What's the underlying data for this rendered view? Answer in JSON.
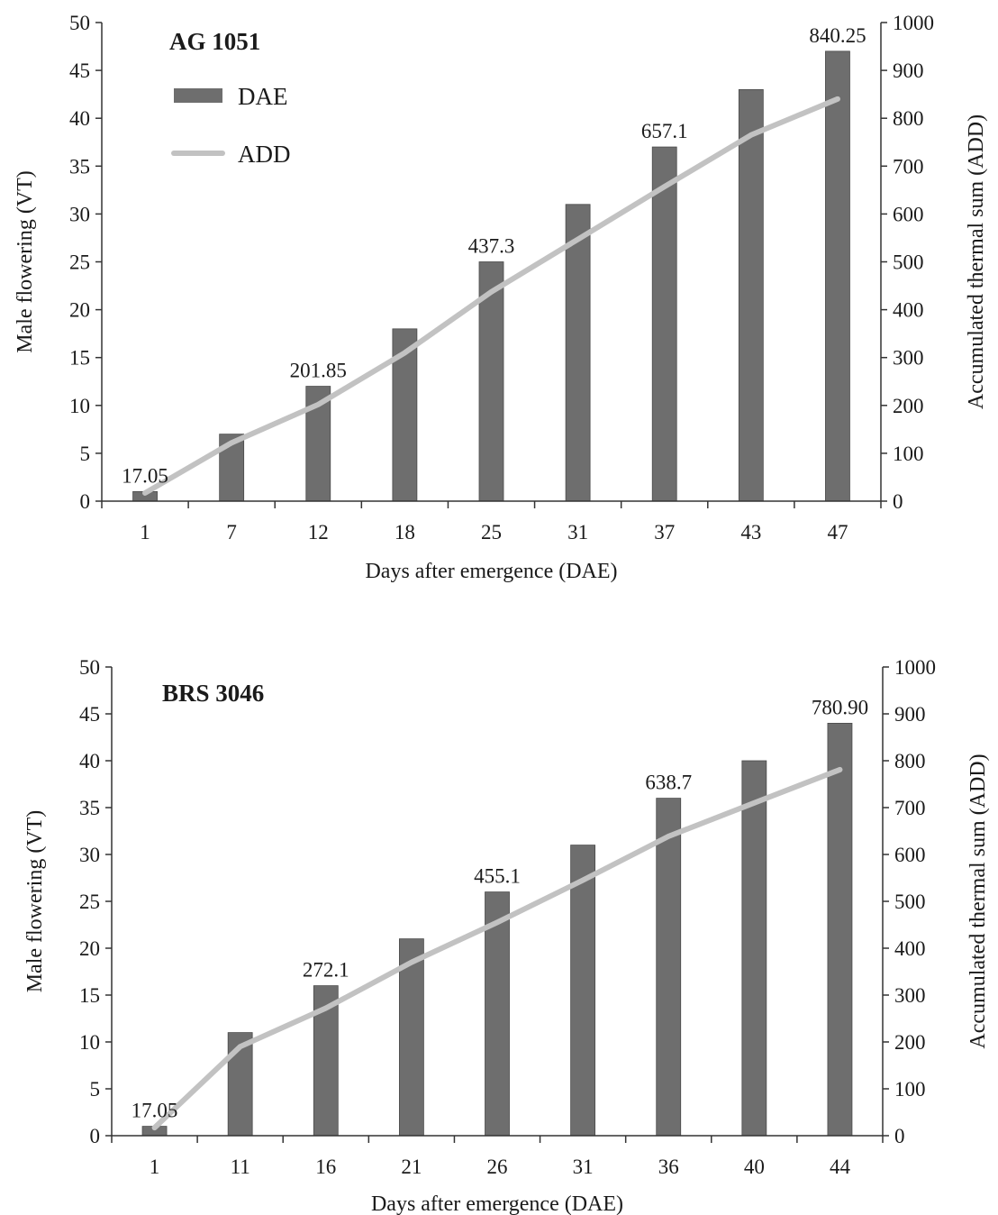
{
  "chart_data": [
    {
      "type": "bar",
      "title": "AG 1051",
      "xlabel": "Days after emergence (DAE)",
      "ylabel": "Male flowering (VT)",
      "y2label": "Accumulated thermal sum (ADD)",
      "categories": [
        "1",
        "7",
        "12",
        "18",
        "25",
        "31",
        "37",
        "43",
        "47"
      ],
      "ylim": [
        0,
        50
      ],
      "yticks": [
        0,
        5,
        10,
        15,
        20,
        25,
        30,
        35,
        40,
        45,
        50
      ],
      "y2lim": [
        0,
        1000
      ],
      "y2ticks": [
        0,
        100,
        200,
        300,
        400,
        500,
        600,
        700,
        800,
        900,
        1000
      ],
      "legend_position": "top-left",
      "series": [
        {
          "name": "DAE",
          "type": "bar",
          "axis": "left",
          "color": "#6e6e6e",
          "values": [
            1,
            7,
            12,
            18,
            25,
            31,
            37,
            43,
            47
          ]
        },
        {
          "name": "ADD",
          "type": "line",
          "axis": "right",
          "color": "#c2c2c2",
          "values": [
            17.05,
            122,
            201.85,
            310,
            437.3,
            547,
            657.1,
            765,
            840.25
          ]
        }
      ],
      "data_labels": [
        {
          "index": 0,
          "text": "17.05"
        },
        {
          "index": 2,
          "text": "201.85"
        },
        {
          "index": 4,
          "text": "437.3"
        },
        {
          "index": 6,
          "text": "657.1"
        },
        {
          "index": 8,
          "text": "840.25"
        }
      ]
    },
    {
      "type": "bar",
      "title": "BRS 3046",
      "xlabel": "Days after emergence (DAE)",
      "ylabel": "Male flowering (VT)",
      "y2label": "Accumulated thermal sum (ADD)",
      "categories": [
        "1",
        "11",
        "16",
        "21",
        "26",
        "31",
        "36",
        "40",
        "44"
      ],
      "ylim": [
        0,
        50
      ],
      "yticks": [
        0,
        5,
        10,
        15,
        20,
        25,
        30,
        35,
        40,
        45,
        50
      ],
      "y2lim": [
        0,
        1000
      ],
      "y2ticks": [
        0,
        100,
        200,
        300,
        400,
        500,
        600,
        700,
        800,
        900,
        1000
      ],
      "series": [
        {
          "name": "DAE",
          "type": "bar",
          "axis": "left",
          "color": "#6e6e6e",
          "values": [
            1,
            11,
            16,
            21,
            26,
            31,
            36,
            40,
            44
          ]
        },
        {
          "name": "ADD",
          "type": "line",
          "axis": "right",
          "color": "#c2c2c2",
          "values": [
            17.05,
            190,
            272.1,
            370,
            455.1,
            545,
            638.7,
            710,
            780.9
          ]
        }
      ],
      "data_labels": [
        {
          "index": 0,
          "text": "17.05"
        },
        {
          "index": 2,
          "text": "272.1"
        },
        {
          "index": 4,
          "text": "455.1"
        },
        {
          "index": 6,
          "text": "638.7"
        },
        {
          "index": 8,
          "text": "780.90"
        }
      ]
    }
  ]
}
